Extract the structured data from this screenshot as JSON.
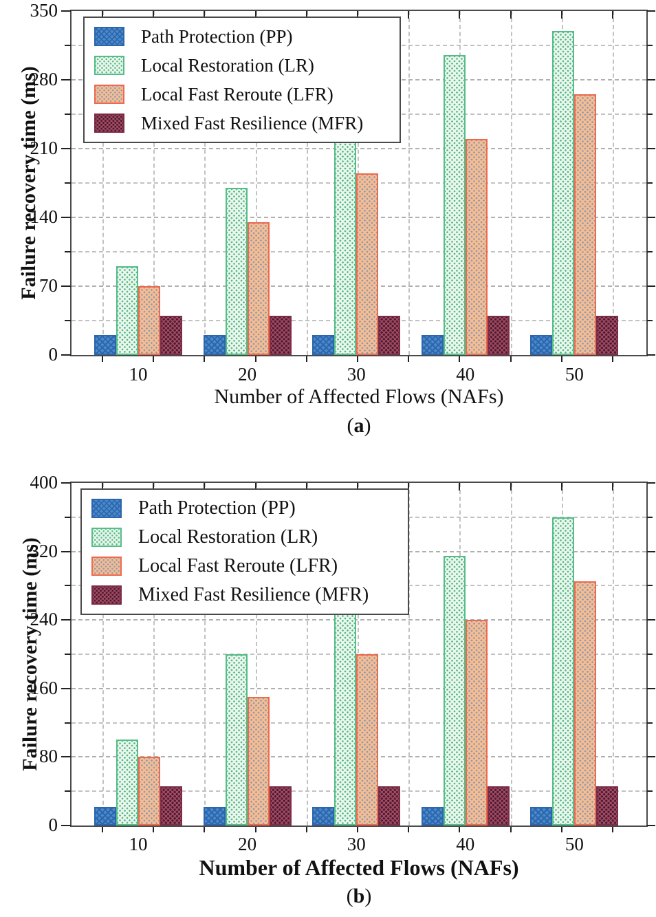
{
  "figure": {
    "description": "Failure recovery time comparison of four resilience schemes"
  },
  "chart_data": [
    {
      "type": "bar",
      "caption_open": "(",
      "caption_letter": "a",
      "caption_close": ")",
      "xlabel": "Number of Affected Flows (NAFs)",
      "ylabel": "Failure recovery time (ms)",
      "categories": [
        "10",
        "20",
        "30",
        "40",
        "50"
      ],
      "yticks": [
        0,
        70,
        140,
        210,
        280,
        350
      ],
      "minor_step": 35,
      "ylim": [
        0,
        350
      ],
      "grid": true,
      "legend_position": "top-left",
      "series": [
        {
          "name": "Path Protection (PP)",
          "short": "PP",
          "values": [
            20,
            20,
            20,
            20,
            20
          ],
          "pattern": "crosshatch",
          "fill": "#4c89c8",
          "dot": "#2b66ae",
          "border": "#2b66ae"
        },
        {
          "name": "Local Restoration (LR)",
          "short": "LR",
          "values": [
            90,
            170,
            240,
            305,
            330
          ],
          "pattern": "dots",
          "fill": "#eaf6ee",
          "dot": "#57ba84",
          "border": "#54bd88"
        },
        {
          "name": "Local Fast Reroute (LFR)",
          "short": "LFR",
          "values": [
            70,
            135,
            185,
            220,
            265
          ],
          "pattern": "dots",
          "fill": "#f7bc90",
          "dot": "#8c9bb4",
          "border": "#ee6a4f"
        },
        {
          "name": "Mixed Fast Resilience (MFR)",
          "short": "MFR",
          "values": [
            40,
            40,
            40,
            40,
            40
          ],
          "pattern": "dots",
          "fill": "#a74c66",
          "dot": "#4a1b2f",
          "border": "#7e2d47"
        }
      ]
    },
    {
      "type": "bar",
      "caption_open": "(",
      "caption_letter": "b",
      "caption_close": ")",
      "xlabel": "Number of Affected Flows (NAFs)",
      "ylabel": "Failure recovery time (ms)",
      "categories": [
        "10",
        "20",
        "30",
        "40",
        "50"
      ],
      "yticks": [
        0,
        80,
        160,
        240,
        320,
        400
      ],
      "minor_step": 40,
      "ylim": [
        0,
        400
      ],
      "grid": true,
      "legend_position": "top-left",
      "series": [
        {
          "name": "Path Protection (PP)",
          "short": "PP",
          "values": [
            22,
            22,
            22,
            22,
            22
          ],
          "pattern": "crosshatch",
          "fill": "#4c89c8",
          "dot": "#2b66ae",
          "border": "#2b66ae"
        },
        {
          "name": "Local Restoration (LR)",
          "short": "LR",
          "values": [
            100,
            200,
            260,
            315,
            360
          ],
          "pattern": "dots",
          "fill": "#eaf6ee",
          "dot": "#57ba84",
          "border": "#54bd88"
        },
        {
          "name": "Local Fast Reroute (LFR)",
          "short": "LFR",
          "values": [
            80,
            150,
            200,
            240,
            285
          ],
          "pattern": "dots",
          "fill": "#f7bc90",
          "dot": "#8c9bb4",
          "border": "#ee6a4f"
        },
        {
          "name": "Mixed Fast Resilience (MFR)",
          "short": "MFR",
          "values": [
            46,
            46,
            46,
            46,
            46
          ],
          "pattern": "dots",
          "fill": "#a74c66",
          "dot": "#4a1b2f",
          "border": "#7e2d47"
        }
      ]
    }
  ]
}
